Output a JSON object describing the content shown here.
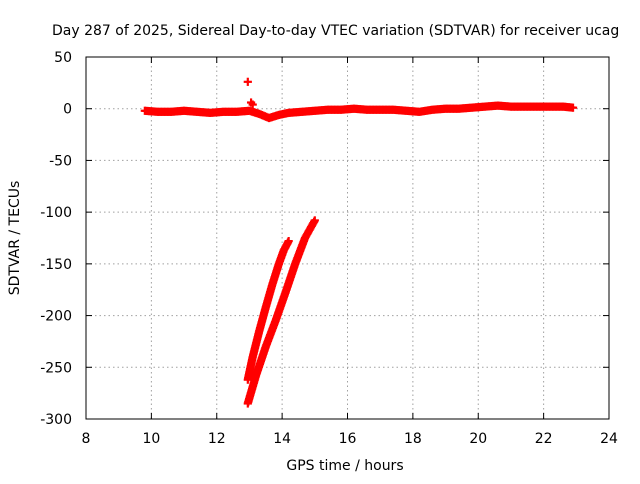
{
  "chart_data": {
    "type": "scatter",
    "title": "Day 287 of 2025, Sidereal Day-to-day VTEC variation (SDTVAR) for receiver ucag",
    "xlabel": "GPS time / hours",
    "ylabel": "SDTVAR / TECUs",
    "xlim": [
      8,
      24
    ],
    "ylim": [
      -300,
      50
    ],
    "xticks": [
      8,
      10,
      12,
      14,
      16,
      18,
      20,
      22,
      24
    ],
    "yticks": [
      50,
      0,
      -50,
      -100,
      -150,
      -200,
      -250,
      -300
    ],
    "grid": true,
    "legend": "none",
    "marker": "+",
    "color": "#ff0000",
    "series": [
      {
        "name": "near-zero trace",
        "x": [
          9.8,
          10.2,
          10.6,
          11.0,
          11.4,
          11.8,
          12.2,
          12.6,
          13.0,
          13.3,
          13.6,
          13.9,
          14.2,
          14.6,
          15.0,
          15.4,
          15.8,
          16.2,
          16.6,
          17.0,
          17.4,
          17.8,
          18.2,
          18.6,
          19.0,
          19.4,
          19.8,
          20.2,
          20.6,
          21.0,
          21.4,
          21.8,
          22.2,
          22.6,
          22.9
        ],
        "y": [
          -2,
          -3,
          -3,
          -2,
          -3,
          -4,
          -3,
          -3,
          -2,
          -5,
          -9,
          -6,
          -4,
          -3,
          -2,
          -1,
          -1,
          0,
          -1,
          -1,
          -1,
          -2,
          -3,
          -1,
          0,
          0,
          1,
          2,
          3,
          2,
          2,
          2,
          2,
          2,
          1
        ]
      },
      {
        "name": "outliers",
        "x": [
          12.95,
          13.05,
          13.1
        ],
        "y": [
          26,
          6,
          4
        ]
      },
      {
        "name": "descending arc 1",
        "x": [
          12.95,
          13.1,
          13.3,
          13.5,
          13.7,
          13.9,
          14.05,
          14.2
        ],
        "y": [
          -262,
          -240,
          -215,
          -192,
          -170,
          -150,
          -137,
          -128
        ]
      },
      {
        "name": "descending arc 2",
        "x": [
          12.95,
          13.2,
          13.5,
          13.8,
          14.1,
          14.4,
          14.7,
          15.0
        ],
        "y": [
          -285,
          -258,
          -230,
          -205,
          -178,
          -150,
          -125,
          -108
        ]
      }
    ]
  }
}
